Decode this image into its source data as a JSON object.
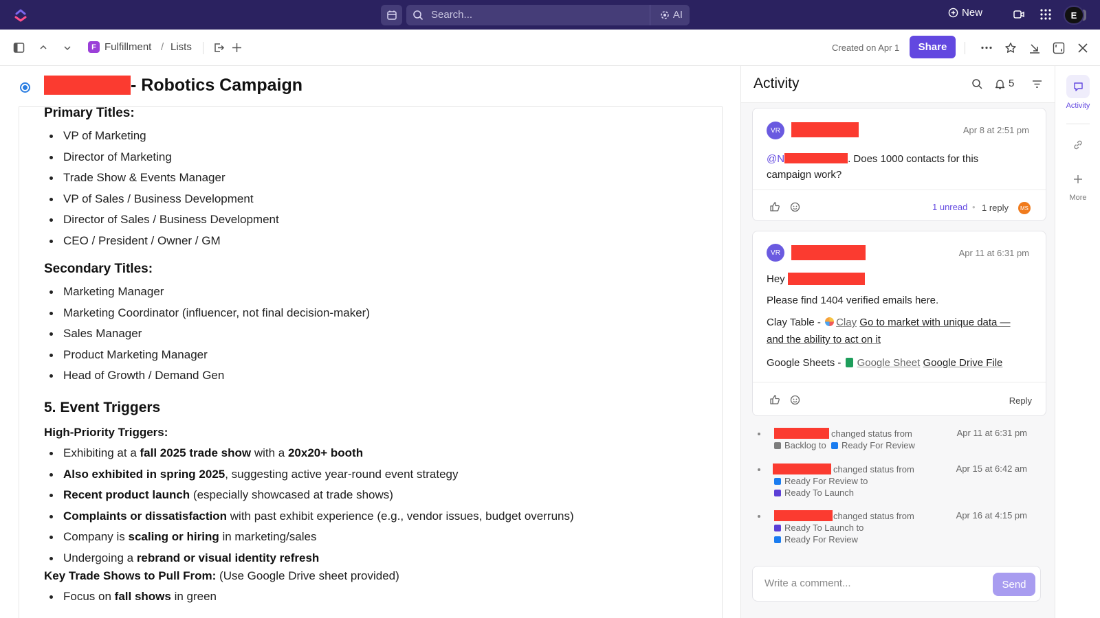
{
  "topbar": {
    "search_placeholder": "Search...",
    "ai_label": "AI",
    "new_label": "New",
    "avatar_initial": "E"
  },
  "subbar": {
    "space_letter": "F",
    "breadcrumb": [
      "Fulfillment",
      "Lists"
    ],
    "breadcrumb_separator": "/",
    "created": "Created on Apr 1",
    "share_label": "Share"
  },
  "doc": {
    "title": "- Robotics Campaign",
    "primary_heading": "Primary Titles:",
    "primary_items": [
      "VP of Marketing",
      "Director of Marketing",
      "Trade Show & Events Manager",
      "VP of Sales / Business Development",
      "Director of Sales / Business Development",
      "CEO / President / Owner / GM"
    ],
    "secondary_heading": "Secondary Titles:",
    "secondary_items": [
      "Marketing Manager",
      "Marketing Coordinator (influencer, not final decision-maker)",
      "Sales Manager",
      "Product Marketing Manager",
      "Head of Growth / Demand Gen"
    ],
    "triggers_heading": "5. Event Triggers",
    "high_priority_heading": "High-Priority Triggers:",
    "triggers": [
      {
        "pre": "Exhibiting at a ",
        "b1": "fall 2025 trade show",
        "mid": " with a ",
        "b2": "20x20+ booth",
        "post": ""
      },
      {
        "pre": "",
        "b1": "Also exhibited in spring 2025",
        "mid": ", suggesting active year-round event strategy",
        "b2": "",
        "post": ""
      },
      {
        "pre": "",
        "b1": "Recent product launch",
        "mid": " (especially showcased at trade shows)",
        "b2": "",
        "post": ""
      },
      {
        "pre": "",
        "b1": "Complaints or dissatisfaction",
        "mid": " with past exhibit experience (e.g., vendor issues, budget overruns)",
        "b2": "",
        "post": ""
      },
      {
        "pre": "Company is ",
        "b1": "scaling or hiring",
        "mid": " in marketing/sales",
        "b2": "",
        "post": ""
      },
      {
        "pre": "Undergoing a ",
        "b1": "rebrand or visual identity refresh",
        "mid": "",
        "b2": "",
        "post": ""
      }
    ],
    "key_shows_label": "Key Trade Shows to Pull From:",
    "key_shows_note": " (Use Google Drive sheet provided)",
    "focus": {
      "pre": "Focus on ",
      "b": "fall shows",
      "post": " in green"
    }
  },
  "activity": {
    "title": "Activity",
    "notif_count": "5",
    "comment1": {
      "avatar": "VR",
      "time": "Apr 8 at 2:51 pm",
      "mention": "@N",
      "text_line1": ". Does 1000 contacts for this",
      "text_line2": "campaign work?",
      "unread": "1 unread",
      "replies": "1 reply",
      "reply_avatar": "MS"
    },
    "comment2": {
      "avatar": "VR",
      "time": "Apr 11 at 6:31 pm",
      "hey": "Hey ",
      "line2": "Please find 1404 verified emails here.",
      "clay_prefix": "Clay Table - ",
      "clay_app": "Clay",
      "clay_link_line1": "Go to market with unique data —",
      "clay_link_line2": "and the ability to act on it",
      "sheets_prefix": "Google Sheets - ",
      "sheets_app": "Google Sheet",
      "sheets_link": "Google Drive File",
      "reply_label": "Reply"
    },
    "log": [
      {
        "action": "changed status from",
        "from": "Backlog to",
        "to": "Ready For Review",
        "time": "Apr 11 at 6:31 pm",
        "from_color": "#7d7d7d",
        "to_color": "#1a7cf0"
      },
      {
        "action": "changed status from",
        "from": "Ready For Review to",
        "to": "Ready To Launch",
        "time": "Apr 15 at 6:42 am",
        "from_color": "#1a7cf0",
        "to_color": "#5b3fd6"
      },
      {
        "action": "changed status from",
        "from": "Ready To Launch to",
        "to": "Ready For Review",
        "time": "Apr 16 at 4:15 pm",
        "from_color": "#5b3fd6",
        "to_color": "#1a7cf0"
      }
    ],
    "comment_placeholder": "Write a comment...",
    "send_label": "Send"
  },
  "rail": {
    "activity_label": "Activity",
    "more_label": "More"
  },
  "colors": {
    "topbar": "#2b2260",
    "accent": "#6248e0",
    "redaction": "#fb3b30"
  }
}
